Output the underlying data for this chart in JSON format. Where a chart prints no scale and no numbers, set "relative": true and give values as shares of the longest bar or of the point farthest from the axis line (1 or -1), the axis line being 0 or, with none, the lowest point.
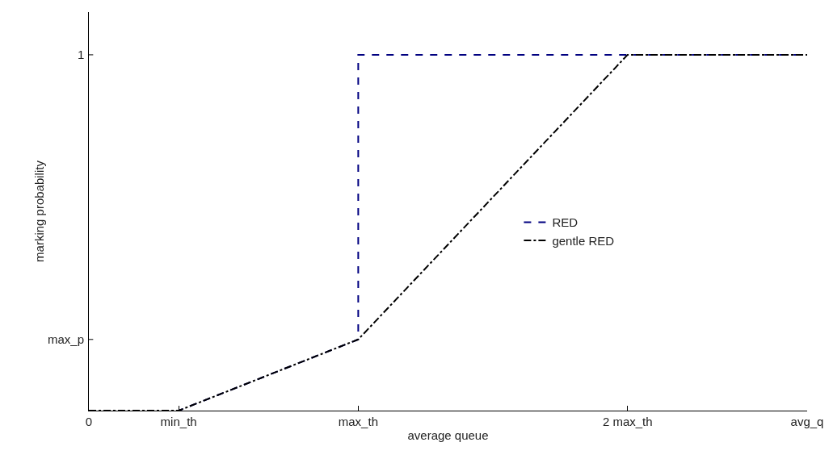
{
  "chart_data": {
    "type": "line",
    "xlabel": "average queue",
    "ylabel": "marking probability",
    "relative": true,
    "categories": [
      "0",
      "min_th",
      null,
      "max_th",
      null,
      null,
      "2 max_th",
      null,
      "avg_q"
    ],
    "series": [
      {
        "name": "RED",
        "color": "#000080",
        "line_style": "dashed",
        "x": [
          "0",
          "min_th",
          "max_th",
          "max_th",
          "avg_q"
        ],
        "values": [
          0,
          0,
          0.2,
          1,
          1
        ]
      },
      {
        "name": "gentle RED",
        "color": "#000000",
        "line_style": "dashdot",
        "x": [
          "0",
          "min_th",
          "max_th",
          "2 max_th",
          "avg_q"
        ],
        "values": [
          0,
          0,
          0.2,
          1,
          1
        ]
      }
    ],
    "annotations": [
      "max_p",
      "1"
    ],
    "marker": "none",
    "legend": "right"
  }
}
